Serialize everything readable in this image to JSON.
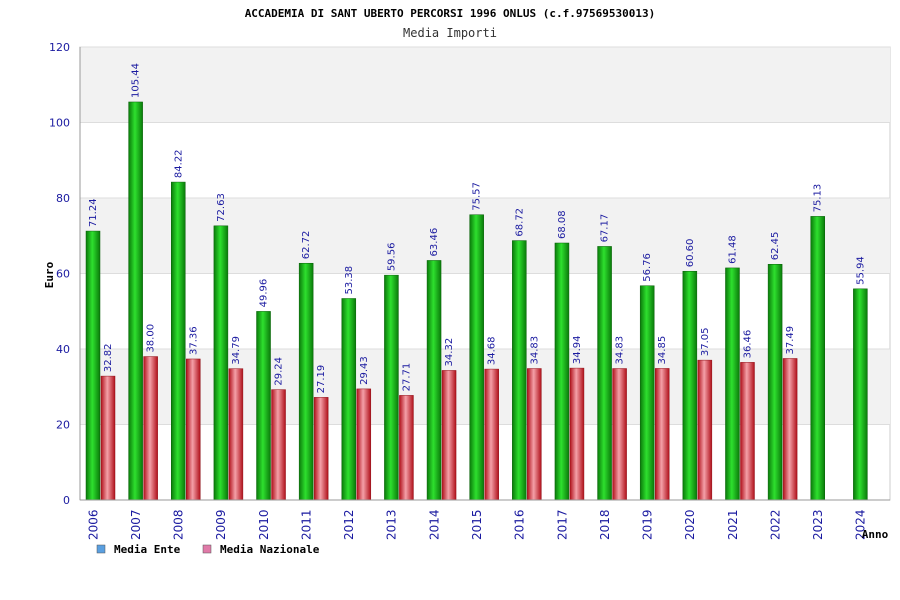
{
  "chart_data": {
    "type": "bar",
    "title": "ACCADEMIA DI SANT UBERTO PERCORSI 1996 ONLUS (c.f.97569530013)",
    "subtitle": "Media Importi",
    "xlabel": "Anno",
    "ylabel": "Euro",
    "ylim": [
      0,
      120
    ],
    "yticks": [
      "0",
      "20",
      "40",
      "60",
      "80",
      "100",
      "120"
    ],
    "grid": true,
    "legend_position": "bottom-left",
    "categories": [
      "2006",
      "2007",
      "2008",
      "2009",
      "2010",
      "2011",
      "2012",
      "2013",
      "2014",
      "2015",
      "2016",
      "2017",
      "2018",
      "2019",
      "2020",
      "2021",
      "2022",
      "2023",
      "2024"
    ],
    "series": [
      {
        "name": "Media Ente",
        "legend_color": "#5a9fe0",
        "bar_color": "#16b016",
        "values": [
          71.24,
          105.44,
          84.22,
          72.63,
          49.96,
          62.72,
          53.38,
          59.56,
          63.46,
          75.57,
          68.72,
          68.08,
          67.17,
          56.76,
          60.6,
          61.48,
          62.45,
          75.13,
          55.94
        ],
        "labels": [
          "71.24",
          "105.44",
          "84.22",
          "72.63",
          "49.96",
          "62.72",
          "53.38",
          "59.56",
          "63.46",
          "75.57",
          "68.72",
          "68.08",
          "67.17",
          "56.76",
          "60.60",
          "61.48",
          "62.45",
          "75.13",
          "55.94"
        ]
      },
      {
        "name": "Media Nazionale",
        "legend_color": "#e07aa8",
        "bar_color": "#e0303a",
        "values": [
          32.82,
          38.0,
          37.36,
          34.79,
          29.24,
          27.19,
          29.43,
          27.71,
          34.32,
          34.68,
          34.83,
          34.94,
          34.83,
          34.85,
          37.05,
          36.46,
          37.49,
          null,
          null
        ],
        "labels": [
          "32.82",
          "38.00",
          "37.36",
          "34.79",
          "29.24",
          "27.19",
          "29.43",
          "27.71",
          "34.32",
          "34.68",
          "34.83",
          "34.94",
          "34.83",
          "34.85",
          "37.05",
          "36.46",
          "37.49",
          "",
          ""
        ]
      }
    ]
  }
}
